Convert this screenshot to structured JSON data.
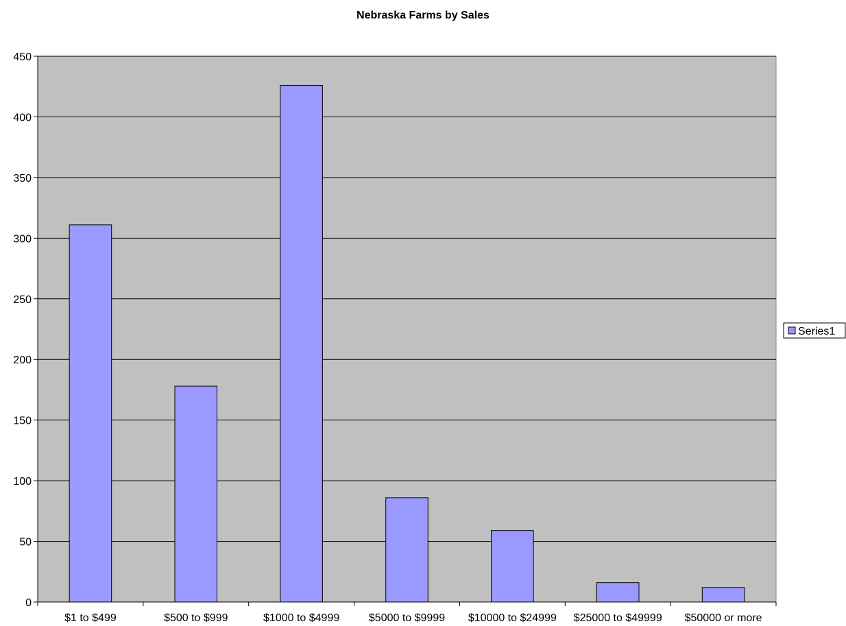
{
  "chart_data": {
    "type": "bar",
    "title": "Nebraska Farms by Sales",
    "categories": [
      "$1 to $499",
      "$500 to $999",
      "$1000 to $4999",
      "$5000 to $9999",
      "$10000 to $24999",
      "$25000 to $49999",
      "$50000 or more"
    ],
    "series": [
      {
        "name": "Series1",
        "values": [
          311,
          178,
          426,
          86,
          59,
          16,
          12
        ]
      }
    ],
    "ylim": [
      0,
      450
    ],
    "yticks": [
      0,
      50,
      100,
      150,
      200,
      250,
      300,
      350,
      400,
      450
    ],
    "grid": true,
    "legend": "right",
    "colors": {
      "bar_fill": "#9999ff",
      "bar_stroke": "#000000",
      "plot_background": "#c0c0c0"
    }
  }
}
